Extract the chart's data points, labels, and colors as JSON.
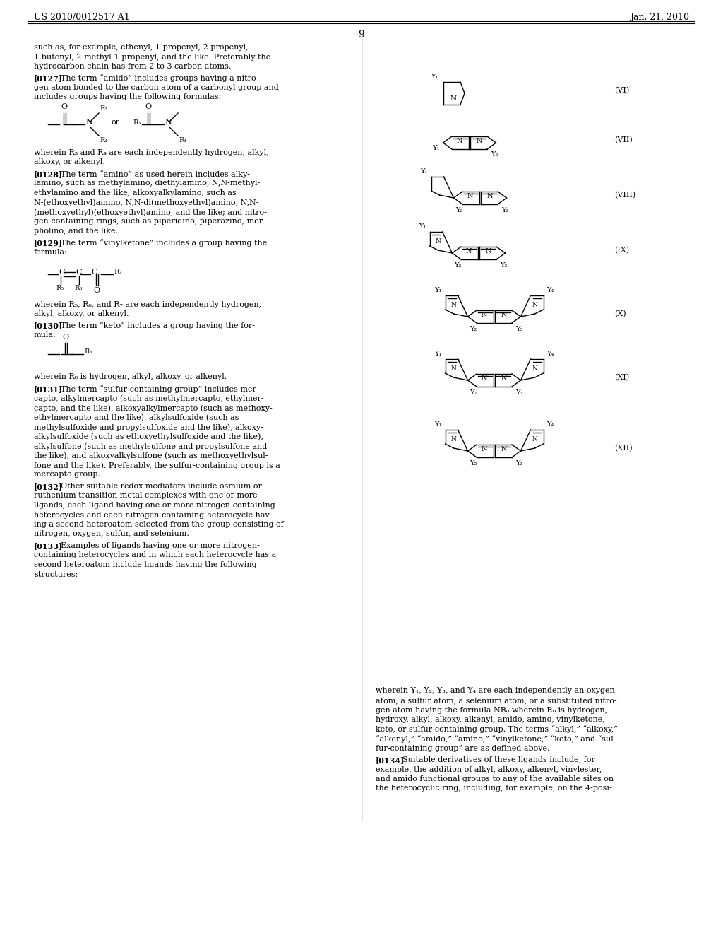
{
  "background_color": "#ffffff",
  "page_header_left": "US 2010/0012517 A1",
  "page_header_right": "Jan. 21, 2010",
  "page_number": "9"
}
